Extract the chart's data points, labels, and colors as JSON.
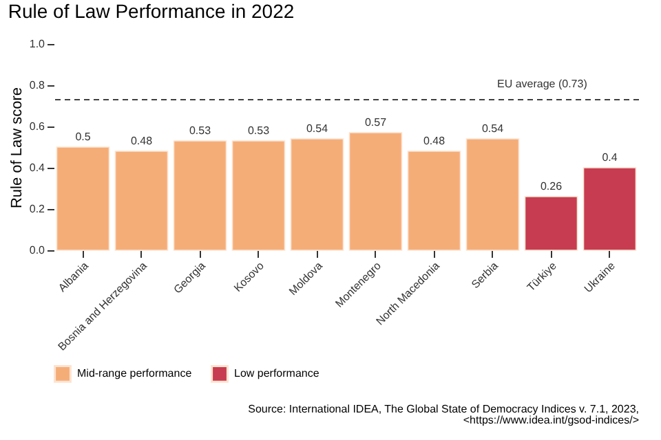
{
  "chart_data": {
    "type": "bar",
    "title": "Rule of Law Performance in 2022",
    "ylabel": "Rule of Law score",
    "categories": [
      "Albania",
      "Bosnia and Herzegovina",
      "Georgia",
      "Kosovo",
      "Moldova",
      "Montenegro",
      "North Macedonia",
      "Serbia",
      "Türkiye",
      "Ukraine"
    ],
    "series": [
      {
        "name": "Mid-range performance",
        "color": "#f5ad78",
        "values": [
          0.5,
          0.48,
          0.53,
          0.53,
          0.54,
          0.57,
          0.48,
          0.54,
          null,
          null
        ]
      },
      {
        "name": "Low performance",
        "color": "#c73c50",
        "values": [
          null,
          null,
          null,
          null,
          null,
          null,
          null,
          null,
          0.26,
          0.4
        ]
      }
    ],
    "ylim": [
      0,
      1.0
    ],
    "yticks": [
      {
        "value": 0,
        "label": "0.0"
      },
      0.2,
      0.4,
      0.6,
      0.8,
      {
        "value": 1.0,
        "label": "1.0"
      }
    ],
    "ref_lines": [
      {
        "axis": "y",
        "value": 0.73,
        "label": "EU average (0.73)",
        "line_style": "dashed"
      }
    ],
    "annotations": [
      "Source: International IDEA, The Global State of Democracy Indices v. 7.1, 2023,",
      "<https://www.idea.int/gsod-indices/>"
    ],
    "data_labels": true,
    "grid": false,
    "legend": "bottom"
  }
}
